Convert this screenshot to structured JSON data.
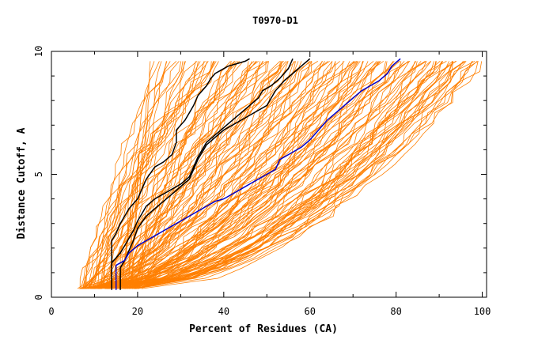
{
  "chart_data": {
    "type": "line",
    "title": "T0970-D1",
    "xlabel": "Percent of Residues (CA)",
    "ylabel": "Distance Cutoff, A",
    "xlim": [
      0,
      101
    ],
    "ylim": [
      0,
      10
    ],
    "x_ticks": [
      0,
      20,
      40,
      60,
      80,
      100
    ],
    "x_tick_labels": [
      "0",
      "20",
      "40",
      "60",
      "80",
      "100"
    ],
    "y_ticks": [
      0,
      5,
      10
    ],
    "y_tick_labels": [
      "0",
      "5",
      "10"
    ],
    "grid": false,
    "legend": "none",
    "colors": {
      "bundle": "#ff7f00",
      "highlight": "#000000",
      "blue": "#0000cc"
    },
    "series": [
      {
        "role": "highlight",
        "color": "#000000",
        "x": [
          14,
          14,
          15,
          16,
          17,
          18,
          19,
          20,
          21,
          22,
          24,
          26,
          28,
          29,
          29,
          31,
          32,
          33,
          34,
          36,
          37,
          38,
          40,
          41,
          43,
          45,
          46
        ],
        "y": [
          0.3,
          2.3,
          2.6,
          3.0,
          3.3,
          3.6,
          3.8,
          4.0,
          4.4,
          4.8,
          5.3,
          5.5,
          5.8,
          6.3,
          6.8,
          7.2,
          7.5,
          7.8,
          8.2,
          8.6,
          8.9,
          9.1,
          9.3,
          9.4,
          9.5,
          9.6,
          9.7
        ]
      },
      {
        "role": "highlight",
        "color": "#000000",
        "x": [
          14,
          14,
          16,
          17,
          18,
          19,
          20,
          21,
          22,
          24,
          26,
          28,
          30,
          32,
          33,
          34,
          35,
          36,
          38,
          40,
          42,
          44,
          46,
          48,
          49,
          51,
          53,
          55,
          56
        ],
        "y": [
          0.4,
          1.4,
          1.8,
          2.1,
          2.4,
          2.7,
          3.1,
          3.4,
          3.7,
          4.0,
          4.2,
          4.4,
          4.6,
          4.9,
          5.3,
          5.7,
          6.0,
          6.3,
          6.6,
          6.9,
          7.2,
          7.5,
          7.8,
          8.1,
          8.4,
          8.6,
          8.9,
          9.3,
          9.7
        ]
      },
      {
        "role": "highlight",
        "color": "#000000",
        "x": [
          16,
          16,
          17,
          18,
          19,
          20,
          22,
          24,
          26,
          28,
          30,
          32,
          33,
          34,
          35,
          36,
          38,
          40,
          42,
          44,
          46,
          48,
          50,
          51,
          52,
          54,
          56,
          58,
          60
        ],
        "y": [
          0.3,
          1.2,
          1.5,
          1.9,
          2.3,
          2.8,
          3.3,
          3.6,
          3.9,
          4.2,
          4.5,
          4.8,
          5.2,
          5.6,
          5.9,
          6.2,
          6.5,
          6.8,
          7.0,
          7.2,
          7.4,
          7.6,
          7.8,
          8.1,
          8.4,
          8.8,
          9.1,
          9.4,
          9.7
        ]
      },
      {
        "role": "highlight",
        "color": "#0000cc",
        "x": [
          15,
          15,
          17,
          18,
          20,
          22,
          24,
          26,
          28,
          30,
          32,
          34,
          36,
          38,
          40,
          42,
          44,
          46,
          48,
          50,
          52,
          53,
          55,
          58,
          60,
          62,
          64,
          66,
          68,
          70,
          72,
          74,
          76,
          78,
          79,
          81
        ],
        "y": [
          0.3,
          1.3,
          1.5,
          1.8,
          2.1,
          2.3,
          2.5,
          2.7,
          2.9,
          3.1,
          3.3,
          3.5,
          3.7,
          3.9,
          4.0,
          4.2,
          4.4,
          4.6,
          4.8,
          5.0,
          5.2,
          5.6,
          5.8,
          6.1,
          6.4,
          6.8,
          7.2,
          7.5,
          7.8,
          8.1,
          8.4,
          8.6,
          8.8,
          9.1,
          9.4,
          9.7
        ]
      }
    ]
  }
}
